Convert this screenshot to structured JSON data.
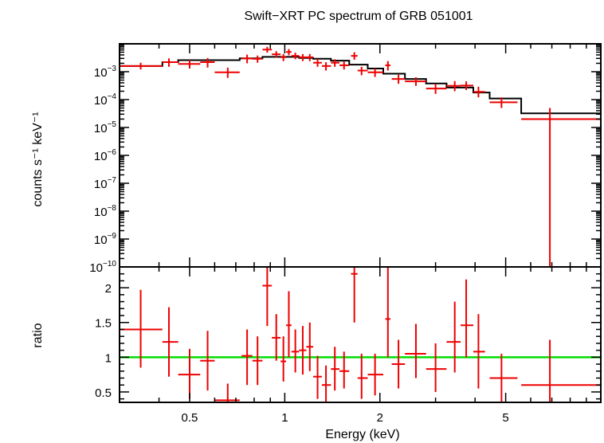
{
  "chart_data": [
    {
      "type": "scatter",
      "title": "Swift−XRT PC spectrum of GRB 051001",
      "ylabel": "counts s⁻¹ keV⁻¹",
      "xscale": "log",
      "yscale": "log",
      "xlim": [
        0.3,
        10
      ],
      "ylim": [
        1e-10,
        0.01
      ],
      "grid": false,
      "ytick_labels": [
        {
          "mant": "10",
          "exp": "−3",
          "value": 0.001
        },
        {
          "mant": "10",
          "exp": "−4",
          "value": 0.0001
        },
        {
          "mant": "10",
          "exp": "−5",
          "value": 1e-05
        },
        {
          "mant": "10",
          "exp": "−6",
          "value": 1e-06
        },
        {
          "mant": "10",
          "exp": "−7",
          "value": 1e-07
        },
        {
          "mant": "10",
          "exp": "−8",
          "value": 1e-08
        },
        {
          "mant": "10",
          "exp": "−9",
          "value": 1e-09
        },
        {
          "mant": "10",
          "exp": "−10",
          "value": 1e-10
        }
      ],
      "series": [
        {
          "kind": "data",
          "color": "#ee0000",
          "points": [
            {
              "x": 0.35,
              "xlo": 0.3,
              "xhi": 0.41,
              "y": 0.0016,
              "ylo": 0.0012,
              "yhi": 0.0021
            },
            {
              "x": 0.43,
              "xlo": 0.41,
              "xhi": 0.46,
              "y": 0.0022,
              "ylo": 0.0015,
              "yhi": 0.003
            },
            {
              "x": 0.5,
              "xlo": 0.46,
              "xhi": 0.54,
              "y": 0.0019,
              "ylo": 0.0013,
              "yhi": 0.0026
            },
            {
              "x": 0.57,
              "xlo": 0.54,
              "xhi": 0.6,
              "y": 0.0022,
              "ylo": 0.0014,
              "yhi": 0.0031
            },
            {
              "x": 0.66,
              "xlo": 0.6,
              "xhi": 0.72,
              "y": 0.00095,
              "ylo": 0.0006,
              "yhi": 0.0014
            },
            {
              "x": 0.76,
              "xlo": 0.73,
              "xhi": 0.79,
              "y": 0.003,
              "ylo": 0.002,
              "yhi": 0.0041
            },
            {
              "x": 0.82,
              "xlo": 0.79,
              "xhi": 0.85,
              "y": 0.0029,
              "ylo": 0.0021,
              "yhi": 0.0038
            },
            {
              "x": 0.88,
              "xlo": 0.85,
              "xhi": 0.91,
              "y": 0.0062,
              "ylo": 0.0048,
              "yhi": 0.0078
            },
            {
              "x": 0.94,
              "xlo": 0.91,
              "xhi": 0.97,
              "y": 0.0042,
              "ylo": 0.0032,
              "yhi": 0.0054
            },
            {
              "x": 0.99,
              "xlo": 0.97,
              "xhi": 1.01,
              "y": 0.0033,
              "ylo": 0.0024,
              "yhi": 0.0043
            },
            {
              "x": 1.03,
              "xlo": 1.01,
              "xhi": 1.05,
              "y": 0.0051,
              "ylo": 0.0039,
              "yhi": 0.0065
            },
            {
              "x": 1.08,
              "xlo": 1.05,
              "xhi": 1.11,
              "y": 0.0037,
              "ylo": 0.0028,
              "yhi": 0.0048
            },
            {
              "x": 1.14,
              "xlo": 1.11,
              "xhi": 1.17,
              "y": 0.0033,
              "ylo": 0.0024,
              "yhi": 0.0043
            },
            {
              "x": 1.2,
              "xlo": 1.17,
              "xhi": 1.23,
              "y": 0.0033,
              "ylo": 0.0024,
              "yhi": 0.0043
            },
            {
              "x": 1.27,
              "xlo": 1.23,
              "xhi": 1.31,
              "y": 0.0021,
              "ylo": 0.0015,
              "yhi": 0.0029
            },
            {
              "x": 1.35,
              "xlo": 1.31,
              "xhi": 1.4,
              "y": 0.0016,
              "ylo": 0.0011,
              "yhi": 0.0022
            },
            {
              "x": 1.44,
              "xlo": 1.4,
              "xhi": 1.49,
              "y": 0.0021,
              "ylo": 0.0015,
              "yhi": 0.0028
            },
            {
              "x": 1.54,
              "xlo": 1.49,
              "xhi": 1.6,
              "y": 0.0017,
              "ylo": 0.0012,
              "yhi": 0.0023
            },
            {
              "x": 1.66,
              "xlo": 1.62,
              "xhi": 1.7,
              "y": 0.0037,
              "ylo": 0.0027,
              "yhi": 0.005
            },
            {
              "x": 1.75,
              "xlo": 1.7,
              "xhi": 1.83,
              "y": 0.0011,
              "ylo": 0.00075,
              "yhi": 0.0015
            },
            {
              "x": 1.93,
              "xlo": 1.83,
              "xhi": 2.05,
              "y": 0.00095,
              "ylo": 0.00065,
              "yhi": 0.0013
            },
            {
              "x": 2.12,
              "xlo": 2.08,
              "xhi": 2.16,
              "y": 0.0017,
              "ylo": 0.0011,
              "yhi": 0.0024
            },
            {
              "x": 2.29,
              "xlo": 2.18,
              "xhi": 2.4,
              "y": 0.00055,
              "ylo": 0.00037,
              "yhi": 0.00078
            },
            {
              "x": 2.6,
              "xlo": 2.4,
              "xhi": 2.8,
              "y": 0.00045,
              "ylo": 0.00031,
              "yhi": 0.00063
            },
            {
              "x": 3.0,
              "xlo": 2.8,
              "xhi": 3.25,
              "y": 0.00025,
              "ylo": 0.00016,
              "yhi": 0.00037
            },
            {
              "x": 3.45,
              "xlo": 3.25,
              "xhi": 3.6,
              "y": 0.00031,
              "ylo": 0.0002,
              "yhi": 0.00046
            },
            {
              "x": 3.75,
              "xlo": 3.6,
              "xhi": 3.95,
              "y": 0.00032,
              "ylo": 0.00022,
              "yhi": 0.00045
            },
            {
              "x": 4.1,
              "xlo": 3.95,
              "xhi": 4.3,
              "y": 0.00019,
              "ylo": 0.00012,
              "yhi": 0.00029
            },
            {
              "x": 4.85,
              "xlo": 4.45,
              "xhi": 5.45,
              "y": 8e-05,
              "ylo": 5e-05,
              "yhi": 0.00012
            },
            {
              "x": 6.9,
              "xlo": 5.6,
              "xhi": 10,
              "y": 2e-05,
              "ylo": 1e-10,
              "yhi": 5e-05
            }
          ]
        },
        {
          "kind": "model",
          "color": "#000000",
          "steps": [
            {
              "x0": 0.3,
              "x1": 0.41,
              "y": 0.0016
            },
            {
              "x0": 0.41,
              "x1": 0.46,
              "y": 0.0022
            },
            {
              "x0": 0.46,
              "x1": 0.54,
              "y": 0.0026
            },
            {
              "x0": 0.54,
              "x1": 0.6,
              "y": 0.0026
            },
            {
              "x0": 0.6,
              "x1": 0.72,
              "y": 0.0026
            },
            {
              "x0": 0.72,
              "x1": 0.85,
              "y": 0.003
            },
            {
              "x0": 0.85,
              "x1": 1.0,
              "y": 0.0034
            },
            {
              "x0": 1.0,
              "x1": 1.11,
              "y": 0.0034
            },
            {
              "x0": 1.11,
              "x1": 1.23,
              "y": 0.0031
            },
            {
              "x0": 1.23,
              "x1": 1.4,
              "y": 0.0029
            },
            {
              "x0": 1.4,
              "x1": 1.6,
              "y": 0.0025
            },
            {
              "x0": 1.6,
              "x1": 1.83,
              "y": 0.0018
            },
            {
              "x0": 1.83,
              "x1": 2.05,
              "y": 0.0013
            },
            {
              "x0": 2.05,
              "x1": 2.4,
              "y": 0.00085
            },
            {
              "x0": 2.4,
              "x1": 2.8,
              "y": 0.00055
            },
            {
              "x0": 2.8,
              "x1": 3.25,
              "y": 0.00038
            },
            {
              "x0": 3.25,
              "x1": 3.95,
              "y": 0.00027
            },
            {
              "x0": 3.95,
              "x1": 4.45,
              "y": 0.00018
            },
            {
              "x0": 4.45,
              "x1": 5.6,
              "y": 0.00011
            },
            {
              "x0": 5.6,
              "x1": 10,
              "y": 3.2e-05
            }
          ]
        }
      ]
    },
    {
      "type": "scatter",
      "xlabel": "Energy (keV)",
      "ylabel": "ratio",
      "xscale": "log",
      "xlim": [
        0.3,
        10
      ],
      "ylim": [
        0.35,
        2.3
      ],
      "grid": false,
      "xticks": [
        {
          "label": "0.5",
          "value": 0.5
        },
        {
          "label": "1",
          "value": 1
        },
        {
          "label": "2",
          "value": 2
        },
        {
          "label": "5",
          "value": 5
        }
      ],
      "yticks": [
        {
          "label": "0.5",
          "value": 0.5
        },
        {
          "label": "1",
          "value": 1
        },
        {
          "label": "1.5",
          "value": 1.5
        },
        {
          "label": "2",
          "value": 2
        }
      ],
      "reference_line": {
        "y": 1,
        "color": "#00dd00"
      },
      "series": [
        {
          "kind": "ratio",
          "color": "#ee0000",
          "points": [
            {
              "x": 0.35,
              "xlo": 0.3,
              "xhi": 0.41,
              "y": 1.4,
              "ylo": 0.85,
              "yhi": 1.97
            },
            {
              "x": 0.43,
              "xlo": 0.41,
              "xhi": 0.46,
              "y": 1.22,
              "ylo": 0.72,
              "yhi": 1.72
            },
            {
              "x": 0.5,
              "xlo": 0.46,
              "xhi": 0.54,
              "y": 0.75,
              "ylo": 0.4,
              "yhi": 1.12
            },
            {
              "x": 0.57,
              "xlo": 0.54,
              "xhi": 0.6,
              "y": 0.95,
              "ylo": 0.52,
              "yhi": 1.38
            },
            {
              "x": 0.66,
              "xlo": 0.6,
              "xhi": 0.72,
              "y": 0.38,
              "ylo": 0.35,
              "yhi": 0.62
            },
            {
              "x": 0.76,
              "xlo": 0.73,
              "xhi": 0.79,
              "y": 1.02,
              "ylo": 0.6,
              "yhi": 1.4
            },
            {
              "x": 0.82,
              "xlo": 0.79,
              "xhi": 0.85,
              "y": 0.95,
              "ylo": 0.6,
              "yhi": 1.3
            },
            {
              "x": 0.88,
              "xlo": 0.85,
              "xhi": 0.91,
              "y": 2.03,
              "ylo": 1.45,
              "yhi": 2.3
            },
            {
              "x": 0.94,
              "xlo": 0.91,
              "xhi": 0.97,
              "y": 1.28,
              "ylo": 0.95,
              "yhi": 1.62
            },
            {
              "x": 0.99,
              "xlo": 0.97,
              "xhi": 1.01,
              "y": 0.94,
              "ylo": 0.65,
              "yhi": 1.3
            },
            {
              "x": 1.03,
              "xlo": 1.01,
              "xhi": 1.05,
              "y": 1.46,
              "ylo": 1.0,
              "yhi": 1.95
            },
            {
              "x": 1.08,
              "xlo": 1.05,
              "xhi": 1.11,
              "y": 1.08,
              "ylo": 0.78,
              "yhi": 1.4
            },
            {
              "x": 1.14,
              "xlo": 1.11,
              "xhi": 1.17,
              "y": 1.1,
              "ylo": 0.75,
              "yhi": 1.45
            },
            {
              "x": 1.2,
              "xlo": 1.17,
              "xhi": 1.23,
              "y": 1.15,
              "ylo": 0.8,
              "yhi": 1.5
            },
            {
              "x": 1.27,
              "xlo": 1.23,
              "xhi": 1.31,
              "y": 0.72,
              "ylo": 0.4,
              "yhi": 1.02
            },
            {
              "x": 1.35,
              "xlo": 1.31,
              "xhi": 1.4,
              "y": 0.6,
              "ylo": 0.35,
              "yhi": 0.88
            },
            {
              "x": 1.44,
              "xlo": 1.4,
              "xhi": 1.49,
              "y": 0.83,
              "ylo": 0.52,
              "yhi": 1.15
            },
            {
              "x": 1.54,
              "xlo": 1.49,
              "xhi": 1.6,
              "y": 0.8,
              "ylo": 0.55,
              "yhi": 1.08
            },
            {
              "x": 1.66,
              "xlo": 1.62,
              "xhi": 1.7,
              "y": 2.2,
              "ylo": 1.5,
              "yhi": 2.3
            },
            {
              "x": 1.75,
              "xlo": 1.7,
              "xhi": 1.83,
              "y": 0.7,
              "ylo": 0.4,
              "yhi": 1.05
            },
            {
              "x": 1.93,
              "xlo": 1.83,
              "xhi": 2.05,
              "y": 0.75,
              "ylo": 0.45,
              "yhi": 1.05
            },
            {
              "x": 2.12,
              "xlo": 2.08,
              "xhi": 2.16,
              "y": 1.55,
              "ylo": 1.0,
              "yhi": 2.3
            },
            {
              "x": 2.29,
              "xlo": 2.18,
              "xhi": 2.4,
              "y": 0.9,
              "ylo": 0.55,
              "yhi": 1.25
            },
            {
              "x": 2.6,
              "xlo": 2.4,
              "xhi": 2.8,
              "y": 1.05,
              "ylo": 0.7,
              "yhi": 1.48
            },
            {
              "x": 3.0,
              "xlo": 2.8,
              "xhi": 3.25,
              "y": 0.83,
              "ylo": 0.5,
              "yhi": 1.2
            },
            {
              "x": 3.45,
              "xlo": 3.25,
              "xhi": 3.6,
              "y": 1.22,
              "ylo": 0.78,
              "yhi": 1.8
            },
            {
              "x": 3.75,
              "xlo": 3.6,
              "xhi": 3.95,
              "y": 1.46,
              "ylo": 1.0,
              "yhi": 2.12
            },
            {
              "x": 4.1,
              "xlo": 3.95,
              "xhi": 4.3,
              "y": 1.08,
              "ylo": 0.55,
              "yhi": 1.62
            },
            {
              "x": 4.85,
              "xlo": 4.45,
              "xhi": 5.45,
              "y": 0.7,
              "ylo": 0.35,
              "yhi": 1.05
            },
            {
              "x": 6.9,
              "xlo": 5.6,
              "xhi": 10,
              "y": 0.6,
              "ylo": 0.35,
              "yhi": 1.25
            }
          ]
        }
      ]
    }
  ]
}
